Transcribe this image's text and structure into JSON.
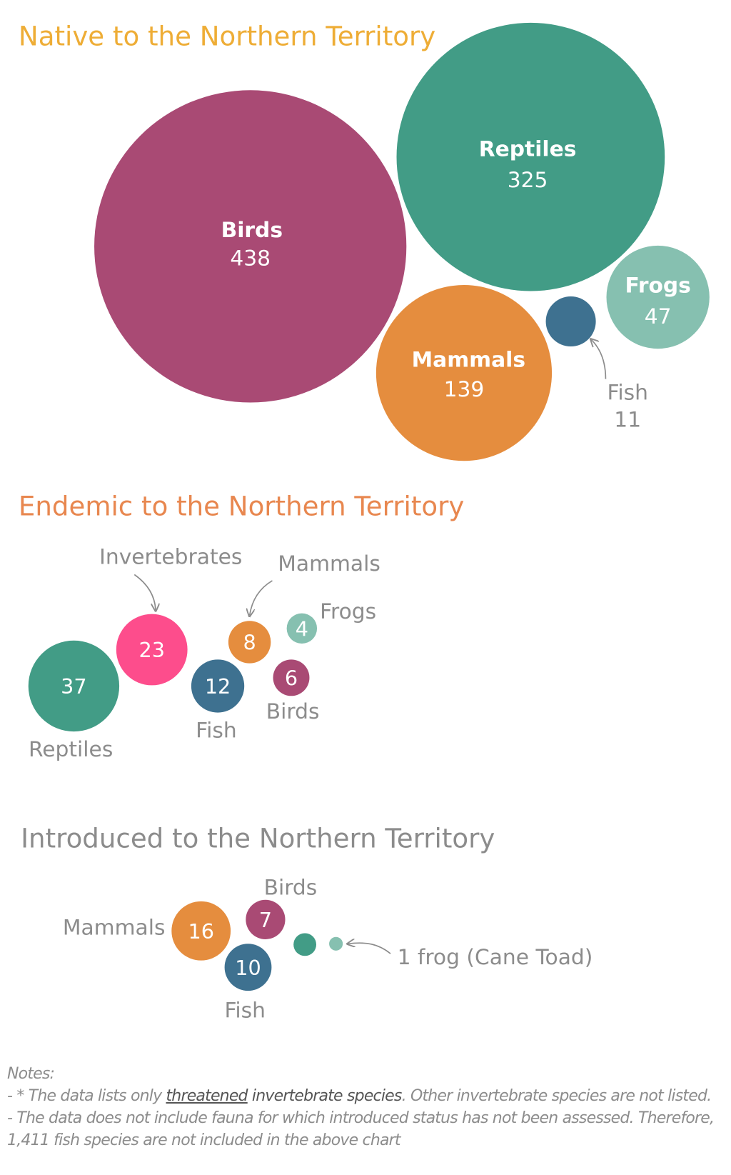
{
  "chart_data": [
    {
      "type": "bubble",
      "title": "Native to the Northern Territory",
      "title_color": "#eead36",
      "items": [
        {
          "name": "Birds",
          "value": 438,
          "color": "#a94a74"
        },
        {
          "name": "Reptiles",
          "value": 325,
          "color": "#429c86"
        },
        {
          "name": "Mammals",
          "value": 139,
          "color": "#e58d3e"
        },
        {
          "name": "Fish",
          "value": 11,
          "color": "#3e7190"
        },
        {
          "name": "Frogs",
          "value": 47,
          "color": "#86c0b0"
        }
      ]
    },
    {
      "type": "bubble",
      "title": "Endemic to the Northern Territory",
      "title_color": "#e8874f",
      "items": [
        {
          "name": "Reptiles",
          "value": 37,
          "color": "#429c86"
        },
        {
          "name": "Invertebrates",
          "value": 23,
          "color": "#fd4d8c"
        },
        {
          "name": "Fish",
          "value": 12,
          "color": "#3e7190"
        },
        {
          "name": "Mammals",
          "value": 8,
          "color": "#e58d3e"
        },
        {
          "name": "Birds",
          "value": 6,
          "color": "#a94a74"
        },
        {
          "name": "Frogs",
          "value": 4,
          "color": "#86c0b0"
        }
      ]
    },
    {
      "type": "bubble",
      "title": "Introduced to the Northern Territory",
      "title_color": "#8c8c8c",
      "items": [
        {
          "name": "Mammals",
          "value": 16,
          "color": "#e58d3e"
        },
        {
          "name": "Birds",
          "value": 7,
          "color": "#a94a74"
        },
        {
          "name": "Fish",
          "value": 10,
          "color": "#3e7190"
        },
        {
          "name": "",
          "value": null,
          "color": "#429c86"
        },
        {
          "name": "1 frog (Cane Toad)",
          "value": 1,
          "color": "#86c0b0"
        }
      ]
    }
  ],
  "notes": {
    "heading": "Notes:",
    "line1_a": "- * The data lists only ",
    "line1_link": "threatened",
    "line1_b": " invertebrate species",
    "line1_c": ". Other invertebrate species are not listed.",
    "line2": "- The data does not include fauna for which introduced status has not been assessed. Therefore, 1,411 fish species are not included in the above chart"
  }
}
